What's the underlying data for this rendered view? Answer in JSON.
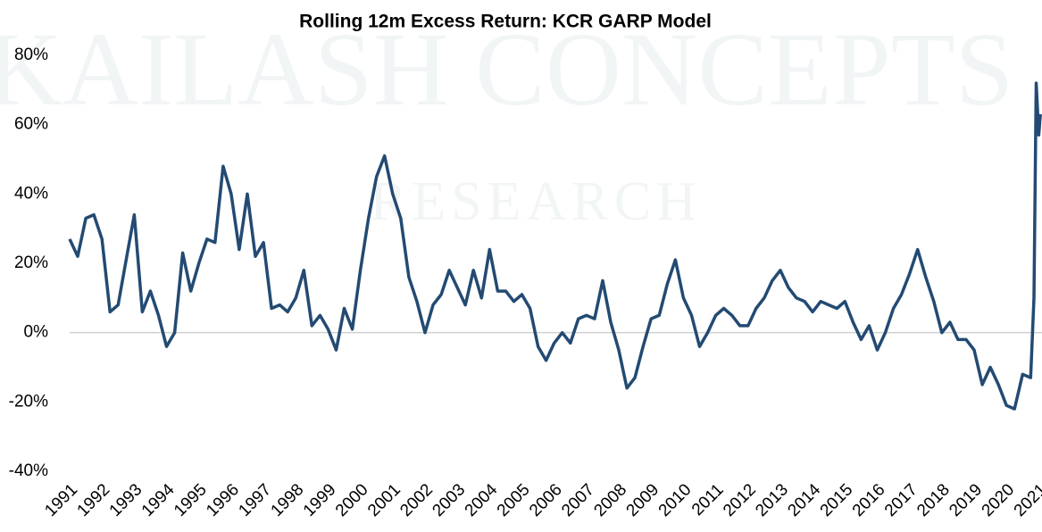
{
  "chart_data": {
    "type": "line",
    "title": "Rolling 12m Excess Return: KCR GARP Model",
    "watermark": "KAILASH CONCEPTS",
    "watermark_sub": "RESEARCH",
    "x": [
      1991,
      1991.25,
      1991.5,
      1991.75,
      1992,
      1992.25,
      1992.5,
      1992.75,
      1993,
      1993.25,
      1993.5,
      1993.75,
      1994,
      1994.25,
      1994.5,
      1994.75,
      1995,
      1995.25,
      1995.5,
      1995.75,
      1996,
      1996.25,
      1996.5,
      1996.75,
      1997,
      1997.25,
      1997.5,
      1997.75,
      1998,
      1998.25,
      1998.5,
      1998.75,
      1999,
      1999.25,
      1999.5,
      1999.75,
      2000,
      2000.25,
      2000.5,
      2000.75,
      2001,
      2001.25,
      2001.5,
      2001.75,
      2002,
      2002.25,
      2002.5,
      2002.75,
      2003,
      2003.25,
      2003.5,
      2003.75,
      2004,
      2004.25,
      2004.5,
      2004.75,
      2005,
      2005.25,
      2005.5,
      2005.75,
      2006,
      2006.25,
      2006.5,
      2006.75,
      2007,
      2007.25,
      2007.5,
      2007.75,
      2008,
      2008.25,
      2008.5,
      2008.75,
      2009,
      2009.25,
      2009.5,
      2009.75,
      2010,
      2010.25,
      2010.5,
      2010.75,
      2011,
      2011.25,
      2011.5,
      2011.75,
      2012,
      2012.25,
      2012.5,
      2012.75,
      2013,
      2013.25,
      2013.5,
      2013.75,
      2014,
      2014.25,
      2014.5,
      2014.75,
      2015,
      2015.25,
      2015.5,
      2015.75,
      2016,
      2016.25,
      2016.5,
      2016.75,
      2017,
      2017.25,
      2017.5,
      2017.75,
      2018,
      2018.25,
      2018.5,
      2018.75,
      2019,
      2019.25,
      2019.5,
      2019.75,
      2020,
      2020.25,
      2020.5,
      2020.75,
      2020.85,
      2020.92,
      2021,
      2021.05
    ],
    "series": [
      {
        "name": "KCR GARP Model",
        "color": "#234a72",
        "values": [
          27,
          22,
          33,
          34,
          27,
          6,
          8,
          21,
          34,
          6,
          12,
          5,
          -4,
          0,
          23,
          12,
          20,
          27,
          26,
          48,
          40,
          24,
          40,
          22,
          26,
          7,
          8,
          6,
          10,
          18,
          2,
          5,
          1,
          -5,
          7,
          1,
          18,
          33,
          45,
          51,
          40,
          33,
          16,
          9,
          0,
          8,
          11,
          18,
          13,
          8,
          18,
          10,
          24,
          12,
          12,
          9,
          11,
          7,
          -4,
          -8,
          -3,
          0,
          -3,
          4,
          5,
          4,
          15,
          3,
          -5,
          -16,
          -13,
          -4,
          4,
          5,
          14,
          21,
          10,
          5,
          -4,
          0,
          5,
          7,
          5,
          2,
          2,
          7,
          10,
          15,
          18,
          13,
          10,
          9,
          6,
          9,
          8,
          7,
          9,
          3,
          -2,
          2,
          -5,
          0,
          7,
          11,
          17,
          24,
          16,
          9,
          0,
          3,
          -2,
          -2,
          -5,
          -15,
          -10,
          -15,
          -21,
          -22,
          -12,
          -13,
          10,
          72,
          57,
          63
        ]
      }
    ],
    "xlim": [
      1991,
      2021.1
    ],
    "xticks": [
      1991,
      1992,
      1993,
      1994,
      1995,
      1996,
      1997,
      1998,
      1999,
      2000,
      2001,
      2002,
      2003,
      2004,
      2005,
      2006,
      2007,
      2008,
      2009,
      2010,
      2011,
      2012,
      2013,
      2014,
      2015,
      2016,
      2017,
      2018,
      2019,
      2020,
      2021
    ],
    "ylim": [
      -40,
      80
    ],
    "yticks": [
      {
        "value": -40,
        "label": "-40%"
      },
      {
        "value": -20,
        "label": "-20%"
      },
      {
        "value": 0,
        "label": "0%"
      },
      {
        "value": 20,
        "label": "20%"
      },
      {
        "value": 40,
        "label": "40%"
      },
      {
        "value": 60,
        "label": "60%"
      },
      {
        "value": 80,
        "label": "80%"
      }
    ],
    "grid": false,
    "zero_line": true
  }
}
